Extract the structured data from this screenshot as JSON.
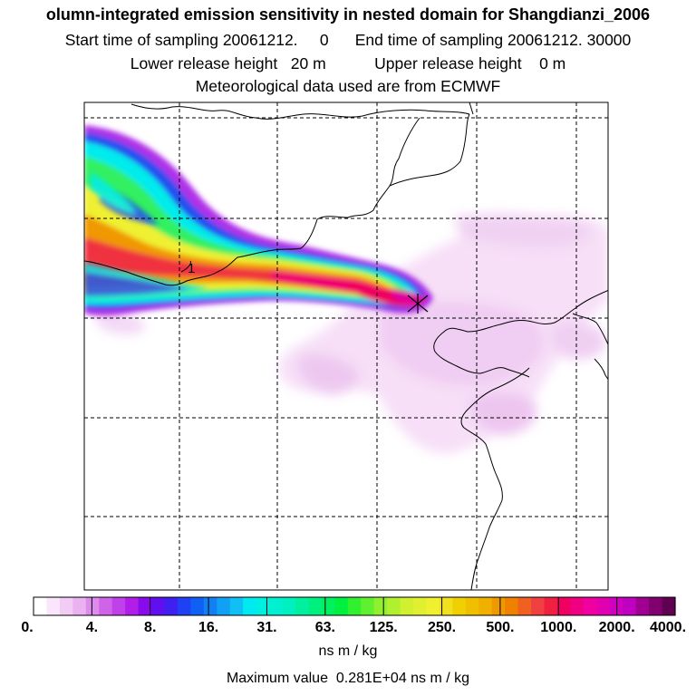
{
  "header": {
    "title": "olumn-integrated emission sensitivity in nested domain for Shangdianzi_2006",
    "line2": "Start time of sampling 20061212.     0      End time of sampling 20061212. 30000",
    "line3": "Lower release height   20 m           Upper release height    0 m",
    "line4": "Meteorological data used are from ECMWF"
  },
  "map": {
    "marker_label": "1"
  },
  "colorbar": {
    "tick_labels": [
      "0.",
      "4.",
      "8.",
      "16.",
      "31.",
      "63.",
      "125.",
      "250.",
      "500.",
      "1000.",
      "2000.",
      "4000."
    ],
    "colors": [
      "#ffffff",
      "#fae6fa",
      "#f3ccf5",
      "#eab2f0",
      "#dd8ceb",
      "#d064e8",
      "#c040ea",
      "#b01ee8",
      "#8a0aee",
      "#6010f0",
      "#4020f0",
      "#2040f4",
      "#1060f4",
      "#1080f4",
      "#10a0f4",
      "#10c0f4",
      "#00eaf0",
      "#00f0e0",
      "#00f0d0",
      "#00f0c0",
      "#00f0a0",
      "#00f080",
      "#00f060",
      "#00f040",
      "#30f030",
      "#60f030",
      "#90f030",
      "#b0f030",
      "#d0f030",
      "#e0f030",
      "#f0f030",
      "#f0e020",
      "#f0d000",
      "#f0c000",
      "#f0b000",
      "#f09800",
      "#f08000",
      "#f06020",
      "#f04040",
      "#f02040",
      "#f00060",
      "#f00080",
      "#f000a0",
      "#e000b0",
      "#d000c0",
      "#c000c0",
      "#a00090",
      "#800070",
      "#600050"
    ],
    "units": "ns m / kg"
  },
  "footer": {
    "max_value": "Maximum value  0.281E+04 ns m / kg"
  }
}
